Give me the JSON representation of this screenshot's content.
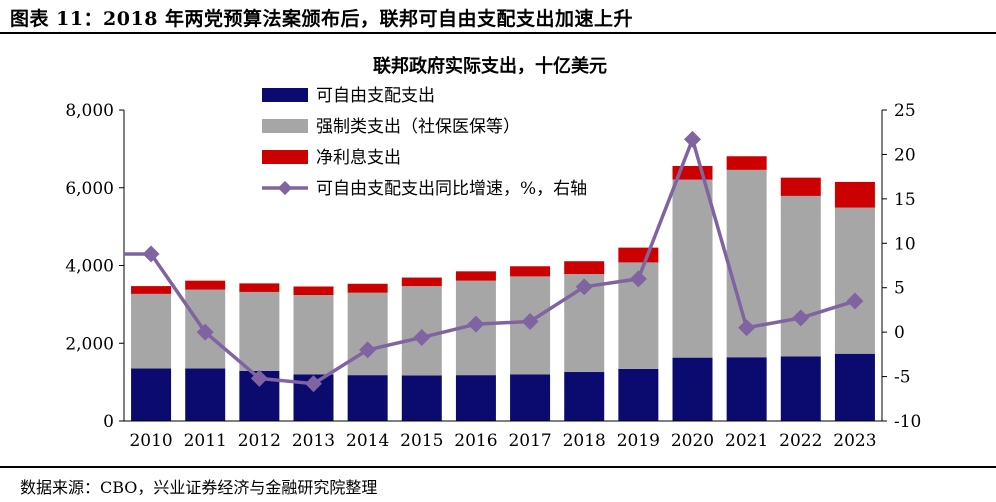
{
  "figure_title": "图表 11：2018 年两党预算法案颁布后，联邦可自由支配支出加速上升",
  "source_note": "数据来源：CBO，兴业证券经济与金融研究院整理",
  "chart_data": {
    "type": "bar",
    "stacked": true,
    "title": "联邦政府实际支出，十亿美元",
    "categories": [
      "2010",
      "2011",
      "2012",
      "2013",
      "2014",
      "2015",
      "2016",
      "2017",
      "2018",
      "2019",
      "2020",
      "2021",
      "2022",
      "2023"
    ],
    "series": [
      {
        "name": "可自由支配支出",
        "type": "bar",
        "axis": "left",
        "color": "#0b0b6f",
        "values": [
          1350,
          1350,
          1290,
          1200,
          1180,
          1170,
          1180,
          1200,
          1260,
          1340,
          1630,
          1640,
          1660,
          1730
        ]
      },
      {
        "name": "强制类支出（社保医保等）",
        "type": "bar",
        "axis": "left",
        "color": "#a6a6a6",
        "values": [
          1920,
          2030,
          2030,
          2040,
          2120,
          2300,
          2430,
          2520,
          2520,
          2740,
          4580,
          4820,
          4130,
          3760
        ]
      },
      {
        "name": "净利息支出",
        "type": "bar",
        "axis": "left",
        "color": "#cc0000",
        "values": [
          200,
          230,
          220,
          220,
          230,
          220,
          240,
          260,
          330,
          380,
          350,
          350,
          470,
          660
        ]
      },
      {
        "name": "可自由支配支出同比增速，%，右轴",
        "type": "line",
        "axis": "right",
        "color": "#8064a2",
        "values": [
          8.8,
          0.0,
          -5.2,
          -5.8,
          -2.0,
          -0.6,
          0.9,
          1.2,
          5.1,
          6.0,
          21.7,
          0.5,
          1.6,
          3.5
        ]
      }
    ],
    "y_left": {
      "min": 0,
      "max": 8000,
      "ticks": [
        "0",
        "2,000",
        "4,000",
        "6,000",
        "8,000"
      ]
    },
    "y_right": {
      "min": -10,
      "max": 25,
      "ticks": [
        "-10",
        "-5",
        "0",
        "5",
        "10",
        "15",
        "20",
        "25"
      ]
    },
    "legend_placement": "top-left",
    "grid": false
  }
}
